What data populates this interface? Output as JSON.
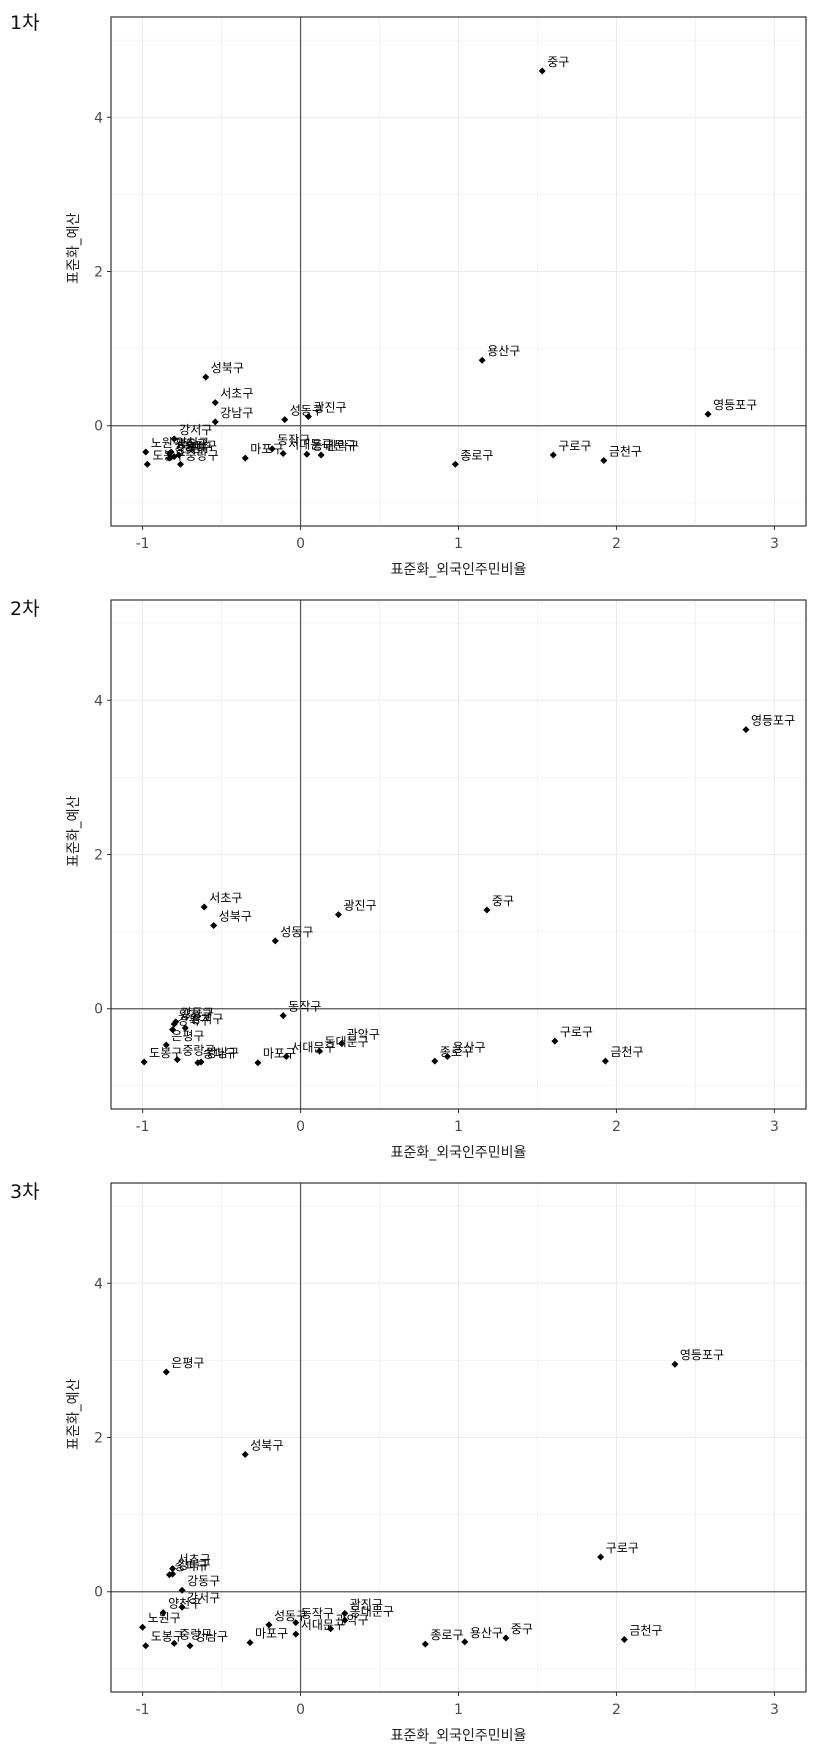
{
  "figure": {
    "panels": [
      {
        "title": "1차"
      },
      {
        "title": "2차"
      },
      {
        "title": "3차"
      }
    ]
  },
  "chart_data": [
    {
      "type": "scatter",
      "title": "1차",
      "xlabel": "표준화_외국인주민비율",
      "ylabel": "표준화_예산",
      "xlim": [
        -1.2,
        3.2
      ],
      "ylim": [
        -1.3,
        5.3
      ],
      "xticks": [
        -1,
        0,
        1,
        2,
        3
      ],
      "yticks": [
        0,
        2,
        4
      ],
      "grid": true,
      "reference_lines": {
        "x": 0,
        "y": 0
      },
      "points": [
        {
          "label": "중구",
          "x": 1.53,
          "y": 4.6
        },
        {
          "label": "영등포구",
          "x": 2.58,
          "y": 0.15
        },
        {
          "label": "용산구",
          "x": 1.15,
          "y": 0.85
        },
        {
          "label": "구로구",
          "x": 1.6,
          "y": -0.38
        },
        {
          "label": "금천구",
          "x": 1.92,
          "y": -0.45
        },
        {
          "label": "종로구",
          "x": 0.98,
          "y": -0.5
        },
        {
          "label": "광진구",
          "x": 0.05,
          "y": 0.12
        },
        {
          "label": "성동구",
          "x": -0.1,
          "y": 0.08
        },
        {
          "label": "동작구",
          "x": -0.18,
          "y": -0.3
        },
        {
          "label": "서대문구",
          "x": -0.11,
          "y": -0.36
        },
        {
          "label": "동대문구",
          "x": 0.04,
          "y": -0.37
        },
        {
          "label": "관악구",
          "x": 0.13,
          "y": -0.38
        },
        {
          "label": "마포구",
          "x": -0.35,
          "y": -0.42
        },
        {
          "label": "성북구",
          "x": -0.6,
          "y": 0.63
        },
        {
          "label": "서초구",
          "x": -0.54,
          "y": 0.3
        },
        {
          "label": "강남구",
          "x": -0.54,
          "y": 0.05
        },
        {
          "label": "강서구",
          "x": -0.8,
          "y": -0.17
        },
        {
          "label": "은평구",
          "x": -0.8,
          "y": -0.4
        },
        {
          "label": "강동구",
          "x": -0.83,
          "y": -0.36
        },
        {
          "label": "양천구",
          "x": -0.82,
          "y": -0.34
        },
        {
          "label": "강북구",
          "x": -0.83,
          "y": -0.42
        },
        {
          "label": "송파구",
          "x": -0.77,
          "y": -0.38
        },
        {
          "label": "중랑구",
          "x": -0.76,
          "y": -0.5
        },
        {
          "label": "노원구",
          "x": -0.98,
          "y": -0.34
        },
        {
          "label": "도봉구",
          "x": -0.97,
          "y": -0.5
        }
      ]
    },
    {
      "type": "scatter",
      "title": "2차",
      "xlabel": "표준화_외국인주민비율",
      "ylabel": "표준화_예산",
      "xlim": [
        -1.2,
        3.2
      ],
      "ylim": [
        -1.3,
        5.3
      ],
      "xticks": [
        -1,
        0,
        1,
        2,
        3
      ],
      "yticks": [
        0,
        2,
        4
      ],
      "grid": true,
      "reference_lines": {
        "x": 0,
        "y": 0
      },
      "points": [
        {
          "label": "영등포구",
          "x": 2.82,
          "y": 3.62
        },
        {
          "label": "중구",
          "x": 1.18,
          "y": 1.28
        },
        {
          "label": "광진구",
          "x": 0.24,
          "y": 1.22
        },
        {
          "label": "서초구",
          "x": -0.61,
          "y": 1.32
        },
        {
          "label": "성북구",
          "x": -0.55,
          "y": 1.08
        },
        {
          "label": "성동구",
          "x": -0.16,
          "y": 0.88
        },
        {
          "label": "동작구",
          "x": -0.11,
          "y": -0.09
        },
        {
          "label": "관악구",
          "x": 0.26,
          "y": -0.45
        },
        {
          "label": "동대문구",
          "x": 0.12,
          "y": -0.55
        },
        {
          "label": "서대문구",
          "x": -0.09,
          "y": -0.62
        },
        {
          "label": "마포구",
          "x": -0.27,
          "y": -0.7
        },
        {
          "label": "용산구",
          "x": 0.93,
          "y": -0.62
        },
        {
          "label": "종로구",
          "x": 0.85,
          "y": -0.68
        },
        {
          "label": "구로구",
          "x": 1.61,
          "y": -0.42
        },
        {
          "label": "금천구",
          "x": 1.93,
          "y": -0.68
        },
        {
          "label": "양천구",
          "x": -0.8,
          "y": -0.2
        },
        {
          "label": "강동구",
          "x": -0.79,
          "y": -0.17
        },
        {
          "label": "강북구",
          "x": -0.81,
          "y": -0.27
        },
        {
          "label": "강서구",
          "x": -0.73,
          "y": -0.25
        },
        {
          "label": "은평구",
          "x": -0.85,
          "y": -0.47
        },
        {
          "label": "송파구",
          "x": -0.65,
          "y": -0.7
        },
        {
          "label": "중랑구",
          "x": -0.78,
          "y": -0.66
        },
        {
          "label": "도봉구",
          "x": -0.99,
          "y": -0.69
        },
        {
          "label": "강남구",
          "x": -0.63,
          "y": -0.69
        }
      ]
    },
    {
      "type": "scatter",
      "title": "3차",
      "xlabel": "표준화_외국인주민비율",
      "ylabel": "표준화_예산",
      "xlim": [
        -1.2,
        3.2
      ],
      "ylim": [
        -1.3,
        5.3
      ],
      "xticks": [
        -1,
        0,
        1,
        2,
        3
      ],
      "yticks": [
        0,
        2,
        4
      ],
      "grid": true,
      "reference_lines": {
        "x": 0,
        "y": 0
      },
      "points": [
        {
          "label": "영등포구",
          "x": 2.37,
          "y": 2.95
        },
        {
          "label": "은평구",
          "x": -0.85,
          "y": 2.85
        },
        {
          "label": "성북구",
          "x": -0.35,
          "y": 1.78
        },
        {
          "label": "구로구",
          "x": 1.9,
          "y": 0.45
        },
        {
          "label": "서초구",
          "x": -0.81,
          "y": 0.3
        },
        {
          "label": "송파구",
          "x": -0.83,
          "y": 0.22
        },
        {
          "label": "강북구",
          "x": -0.81,
          "y": 0.23
        },
        {
          "label": "강동구",
          "x": -0.75,
          "y": 0.02
        },
        {
          "label": "강서구",
          "x": -0.75,
          "y": -0.2
        },
        {
          "label": "양천구",
          "x": -0.87,
          "y": -0.27
        },
        {
          "label": "노원구",
          "x": -1.0,
          "y": -0.46
        },
        {
          "label": "도봉구",
          "x": -0.98,
          "y": -0.7
        },
        {
          "label": "중랑구",
          "x": -0.8,
          "y": -0.67
        },
        {
          "label": "강남구",
          "x": -0.7,
          "y": -0.7
        },
        {
          "label": "성동구",
          "x": -0.2,
          "y": -0.43
        },
        {
          "label": "마포구",
          "x": -0.32,
          "y": -0.66
        },
        {
          "label": "동작구",
          "x": -0.03,
          "y": -0.4
        },
        {
          "label": "서대문구",
          "x": -0.03,
          "y": -0.55
        },
        {
          "label": "광진구",
          "x": 0.28,
          "y": -0.28
        },
        {
          "label": "동대문구",
          "x": 0.28,
          "y": -0.37
        },
        {
          "label": "관악구",
          "x": 0.19,
          "y": -0.48
        },
        {
          "label": "종로구",
          "x": 0.79,
          "y": -0.68
        },
        {
          "label": "용산구",
          "x": 1.04,
          "y": -0.65
        },
        {
          "label": "중구",
          "x": 1.3,
          "y": -0.6
        },
        {
          "label": "금천구",
          "x": 2.05,
          "y": -0.62
        }
      ]
    }
  ]
}
